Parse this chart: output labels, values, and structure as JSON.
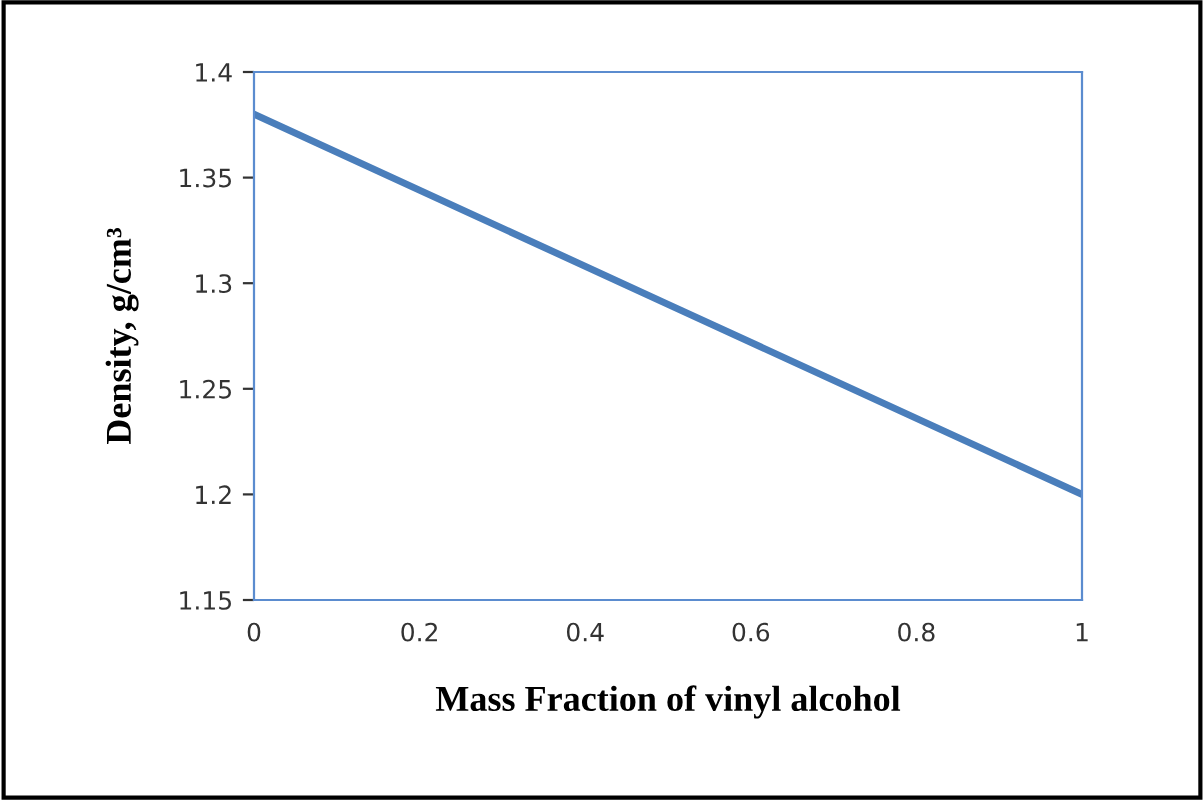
{
  "chart_data": {
    "type": "line",
    "xlabel": "Mass Fraction of vinyl alcohol",
    "ylabel": "Density, g/cm³",
    "x": [
      0,
      0.5,
      1
    ],
    "series": [
      {
        "color": "#4a7ebb",
        "values": [
          1.38,
          1.29,
          1.2
        ]
      }
    ],
    "xlim": [
      0,
      1
    ],
    "xticks": [
      0,
      0.2,
      0.4,
      0.6,
      0.8,
      1
    ],
    "ylim": [
      1.15,
      1.4
    ],
    "yticks": [
      1.15,
      1.2,
      1.25,
      1.3,
      1.35,
      1.4
    ],
    "grid": false,
    "legend": false,
    "marker": "none",
    "line_style": "solid"
  }
}
